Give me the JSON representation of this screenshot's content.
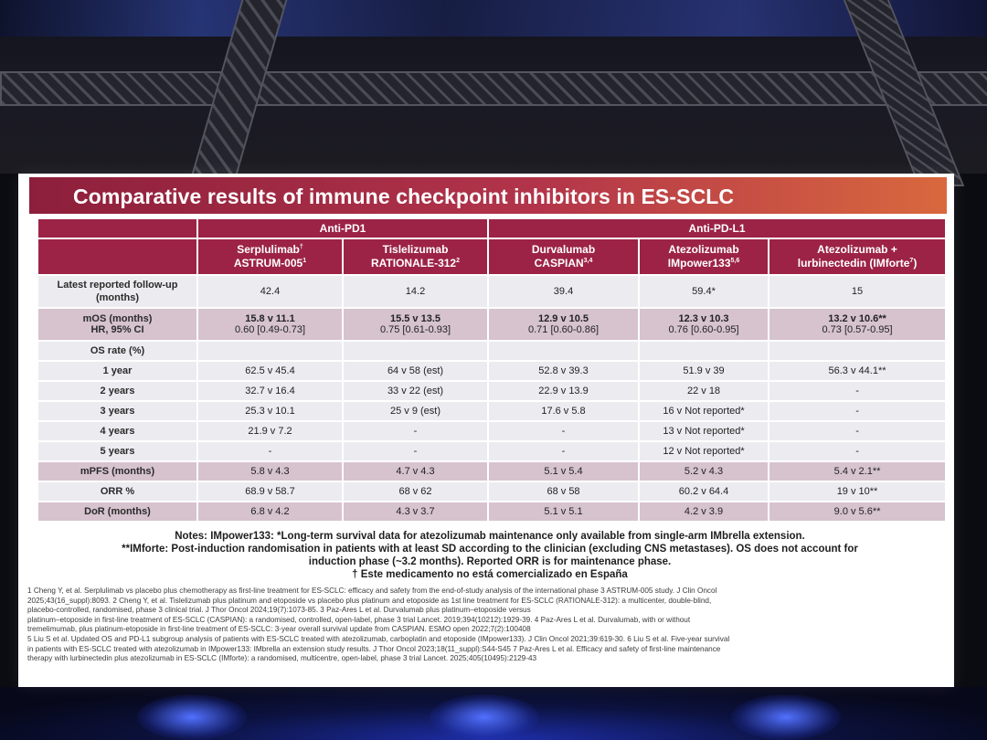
{
  "slide": {
    "title": "Comparative results of immune checkpoint inhibitors in ES-SCLC"
  },
  "table": {
    "groups": [
      "Anti-PD1",
      "Anti-PD-L1"
    ],
    "drugs": [
      {
        "name": "Serplulimab",
        "mark": "†",
        "trial": "ASTRUM-005",
        "refs": "1"
      },
      {
        "name": "Tislelizumab",
        "mark": "",
        "trial": "RATIONALE-312",
        "refs": "2"
      },
      {
        "name": "Durvalumab",
        "mark": "",
        "trial": "CASPIAN",
        "refs": "3,4"
      },
      {
        "name": "Atezolizumab",
        "mark": "",
        "trial": "IMpower133",
        "refs": "5,6"
      },
      {
        "name": "Atezolizumab +",
        "mark": "",
        "trial": "lurbinectedin (IMforte",
        "refs": "7",
        "tail": ")"
      }
    ],
    "rows": {
      "followup": {
        "label": "Latest reported follow-up (months)",
        "values": [
          "42.4",
          "14.2",
          "39.4",
          "59.4*",
          "15"
        ]
      },
      "mos": {
        "label1": "mOS (months)",
        "label2": "HR, 95% CI",
        "main": [
          "15.8 v 11.1",
          "15.5 v 13.5",
          "12.9 v 10.5",
          "12.3 v 10.3",
          "13.2 v 10.6**"
        ],
        "hr": [
          "0.60 [0.49-0.73]",
          "0.75 [0.61-0.93]",
          "0.71 [0.60-0.86]",
          "0.76 [0.60-0.95]",
          "0.73 [0.57-0.95]"
        ]
      },
      "os_rate": {
        "label": "OS rate (%)"
      },
      "year1": {
        "label": "1 year",
        "values": [
          "62.5 v 45.4",
          "64 v 58 (est)",
          "52.8 v 39.3",
          "51.9 v 39",
          "56.3 v 44.1**"
        ]
      },
      "year2": {
        "label": "2 years",
        "values": [
          "32.7 v 16.4",
          "33 v 22 (est)",
          "22.9 v 13.9",
          "22 v 18",
          "-"
        ]
      },
      "year3": {
        "label": "3 years",
        "values": [
          "25.3 v 10.1",
          "25 v 9 (est)",
          "17.6 v 5.8",
          "16 v Not reported*",
          "-"
        ]
      },
      "year4": {
        "label": "4 years",
        "values": [
          "21.9 v 7.2",
          "-",
          "-",
          "13 v Not reported*",
          "-"
        ]
      },
      "year5": {
        "label": "5 years",
        "values": [
          "-",
          "-",
          "-",
          "12 v Not reported*",
          "-"
        ]
      },
      "mpfs": {
        "label": "mPFS (months)",
        "values": [
          "5.8 v 4.3",
          "4.7 v 4.3",
          "5.1 v 5.4",
          "5.2 v 4.3",
          "5.4 v 2.1**"
        ]
      },
      "orr": {
        "label": "ORR %",
        "values": [
          "68.9 v 58.7",
          "68 v 62",
          "68 v 58",
          "60.2 v 64.4",
          "19 v 10**"
        ]
      },
      "dor": {
        "label": "DoR (months)",
        "values": [
          "6.8 v 4.2",
          "4.3 v 3.7",
          "5.1 v 5.1",
          "4.2 v 3.9",
          "9.0 v 5.6**"
        ]
      }
    }
  },
  "notes": [
    "Notes: IMpower133: *Long-term survival data for atezolizumab maintenance only available from single-arm IMbrella extension.",
    "**IMforte: Post-induction randomisation in patients with at least SD according to the clinician (excluding CNS metastases). OS does not account for",
    "induction phase (~3.2 months). Reported ORR is for maintenance phase.",
    "† Este medicamento no está comercializado en España"
  ],
  "references": [
    "1 Cheng Y, et al. Serplulimab vs placebo plus chemotherapy as first-line treatment for ES-SCLC: efficacy and safety from the end-of-study analysis of the international phase 3 ASTRUM-005 study. J Clin Oncol",
    "2025;43(16_suppl):8093. 2 Cheng Y, et al. Tislelizumab plus platinum and etoposide vs placebo plus platinum and etoposide as 1st line treatment for ES-SCLC (RATIONALE-312): a multicenter, double-blind,",
    "placebo-controlled, randomised, phase 3 clinical trial. J Thor Oncol 2024;19(7):1073-85. 3 Paz-Ares L et al. Durvalumab plus platinum–etoposide versus",
    "platinum–etoposide in first-line treatment of ES-SCLC (CASPIAN): a randomised, controlled, open-label, phase 3 trial Lancet. 2019;394(10212):1929-39. 4 Paz-Ares L et al. Durvalumab, with or without",
    "tremelimumab, plus platinum-etoposide in first-line treatment of ES-SCLC: 3-year overall survival update from CASPIAN. ESMO open 2022;7(2):100408",
    "5 Liu S et al. Updated OS and PD-L1 subgroup analysis of patients with ES-SCLC treated with atezolizumab, carboplatin and etoposide (IMpower133). J Clin Oncol 2021;39:619-30. 6 Liu S et al. Five-year survival",
    "in patients with ES-SCLC treated with atezolizumab in IMpower133: IMbrella an extension study results. J Thor Oncol 2023;18(11_suppl):S44-S45 7 Paz-Ares L et al. Efficacy and safety of first-line maintenance",
    "therapy with lurbinectedin plus atezolizumab in ES-SCLC (IMforte): a randomised, multicentre, open-label, phase 3 trial Lancet. 2025;405(10495):2129-43"
  ]
}
